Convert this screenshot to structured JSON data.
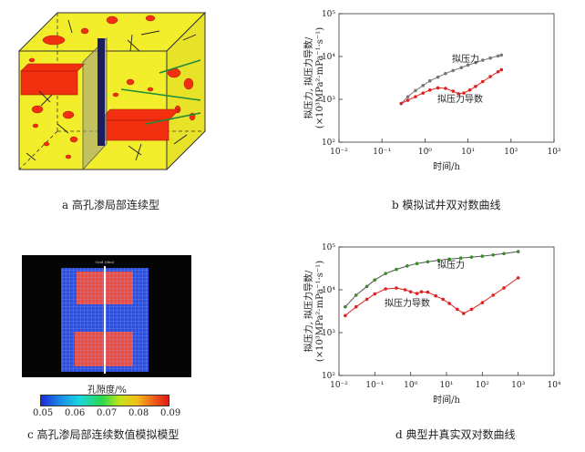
{
  "panels": {
    "a": {
      "caption": "a  高孔渗局部连续型"
    },
    "b": {
      "caption": "b  模拟试井双对数曲线"
    },
    "c": {
      "caption": "c  高孔渗局部连续数值模拟模型",
      "colorbar_label": "孔隙度/%",
      "colorbar_ticks": [
        "0.05",
        "0.06",
        "0.07",
        "0.08",
        "0.09"
      ],
      "model_header": "Grid (dim)"
    },
    "d": {
      "caption": "d  典型井真实双对数曲线"
    }
  },
  "colors": {
    "pressure": "#777777",
    "derivative": "#e02020",
    "real_pressure": "#3a8a2a",
    "box_yellow": "#f3ee2c",
    "fracture_red": "#f2300f"
  },
  "chart_data": [
    {
      "id": "b",
      "type": "scatter",
      "title": "模拟试井双对数曲线",
      "xlabel": "时间/h",
      "ylabel_line1": "拟压力, 拟压力导数/",
      "ylabel_line2": "(×10³MPa²·mPa⁻¹·s⁻¹)",
      "xscale": "log",
      "yscale": "log",
      "xlim": [
        0.01,
        1000
      ],
      "ylim": [
        100,
        100000
      ],
      "x_ticks": [
        "10⁻²",
        "10⁻¹",
        "10⁰",
        "10¹",
        "10²",
        "10³"
      ],
      "y_ticks": [
        "10²",
        "10³",
        "10⁴",
        "10⁵"
      ],
      "annotations": [
        "拟压力",
        "拟压力导数"
      ],
      "series": [
        {
          "name": "拟压力",
          "x": [
            0.28,
            0.4,
            0.6,
            0.9,
            1.3,
            2,
            3,
            4.5,
            7,
            10,
            15,
            22,
            33,
            50,
            60
          ],
          "y": [
            800,
            1150,
            1600,
            2100,
            2700,
            3300,
            4000,
            4700,
            5500,
            6300,
            7200,
            8200,
            9200,
            10300,
            10800
          ]
        },
        {
          "name": "拟压力导数",
          "x": [
            0.28,
            0.4,
            0.6,
            0.9,
            1.3,
            2,
            3,
            4.5,
            6,
            8,
            11,
            15,
            22,
            33,
            50,
            60
          ],
          "y": [
            800,
            950,
            1150,
            1400,
            1650,
            1850,
            1800,
            1550,
            1350,
            1400,
            1650,
            2000,
            2600,
            3400,
            4400,
            4900
          ]
        }
      ]
    },
    {
      "id": "d",
      "type": "scatter",
      "title": "典型井真实双对数曲线",
      "xlabel": "时间/h",
      "ylabel_line1": "拟压力, 拟压力导数/",
      "ylabel_line2": "(×10³MPa²·mPa⁻¹·s⁻¹)",
      "xscale": "log",
      "yscale": "log",
      "xlim": [
        0.01,
        10000
      ],
      "ylim": [
        100,
        100000
      ],
      "x_ticks": [
        "10⁻²",
        "10⁻¹",
        "10⁰",
        "10¹",
        "10²",
        "10³",
        "10⁴"
      ],
      "y_ticks": [
        "10²",
        "10³",
        "10⁴",
        "10⁵"
      ],
      "annotations": [
        "拟压力",
        "拟压力导数"
      ],
      "series": [
        {
          "name": "拟压力",
          "x": [
            0.015,
            0.03,
            0.06,
            0.1,
            0.2,
            0.4,
            0.8,
            1.5,
            3,
            6,
            12,
            25,
            50,
            100,
            200,
            400,
            1000
          ],
          "y": [
            4000,
            7500,
            12000,
            17000,
            24000,
            30000,
            36000,
            41000,
            45000,
            49000,
            52000,
            55000,
            58000,
            61000,
            65000,
            70000,
            78000
          ]
        },
        {
          "name": "拟压力导数",
          "x": [
            0.015,
            0.03,
            0.06,
            0.1,
            0.2,
            0.4,
            0.7,
            1,
            1.5,
            2,
            3,
            5,
            8,
            12,
            20,
            30,
            50,
            100,
            200,
            400,
            1000
          ],
          "y": [
            2500,
            4000,
            6000,
            8000,
            10500,
            11000,
            10000,
            9000,
            8200,
            9000,
            8800,
            7200,
            6000,
            4800,
            3500,
            2800,
            3500,
            5000,
            7500,
            11000,
            19000
          ]
        }
      ]
    }
  ]
}
